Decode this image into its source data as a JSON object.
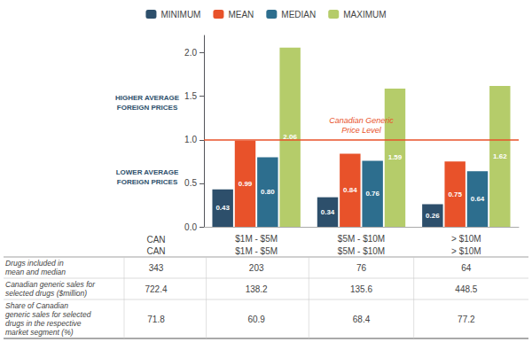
{
  "chart_data": {
    "type": "bar",
    "categories": [
      "$1M - $5M",
      "$5M - $10M",
      "> $10M"
    ],
    "series": [
      {
        "name": "MINIMUM",
        "color": "#2d4f6b",
        "values": [
          0.43,
          0.34,
          0.26
        ],
        "value_labels": [
          "0.43",
          "0.34",
          "0.26"
        ]
      },
      {
        "name": "MEAN",
        "color": "#e8522a",
        "values": [
          0.99,
          0.84,
          0.75
        ],
        "value_labels": [
          "0.99",
          "0.84",
          "0.75"
        ]
      },
      {
        "name": "MEDIAN",
        "color": "#2d6e8e",
        "values": [
          0.8,
          0.76,
          0.64
        ],
        "value_labels": [
          "0.80",
          "0.76",
          "0.64"
        ]
      },
      {
        "name": "MAXIMUM",
        "color": "#b5cc6a",
        "values": [
          2.06,
          1.59,
          1.62
        ],
        "value_labels": [
          "2.06",
          "1.59",
          "1.62"
        ]
      }
    ],
    "ylim": [
      0.0,
      2.2
    ],
    "yticks": [
      {
        "value": 0.0,
        "label": "0.0"
      },
      {
        "value": 0.5,
        "label": "0.5"
      },
      {
        "value": 1.0,
        "label": "1.0"
      },
      {
        "value": 1.5,
        "label": "1.5"
      },
      {
        "value": 2.0,
        "label": "2.0"
      }
    ],
    "grid": false,
    "legend": "top",
    "data_labels": true,
    "reference_line": {
      "value": 1.0,
      "color": "#e8522a",
      "label": "Canadian Generic\nPrice Level"
    },
    "annotations": [
      {
        "text": "HIGHER AVERAGE\nFOREIGN PRICES",
        "color": "#2d4f6b"
      },
      {
        "text": "LOWER AVERAGE\nFOREIGN PRICES",
        "color": "#2d4f6b"
      },
      {
        "text": "CAN"
      }
    ],
    "table": {
      "headers": [
        "CAN",
        "$1M - $5M",
        "$5M - $10M",
        "> $10M"
      ],
      "row_labels": [
        "Drugs included in\nmean and median",
        "Canadian generic sales for\nselected drugs ($million)",
        "Share of Canadian\ngeneric sales for selected\ndrugs in the respective\nmarket segment (%)"
      ],
      "rows": [
        [
          "343",
          "203",
          "76",
          "64"
        ],
        [
          "722.4",
          "138.2",
          "135.6",
          "448.5"
        ],
        [
          "71.8",
          "60.9",
          "68.4",
          "77.2"
        ]
      ]
    }
  }
}
